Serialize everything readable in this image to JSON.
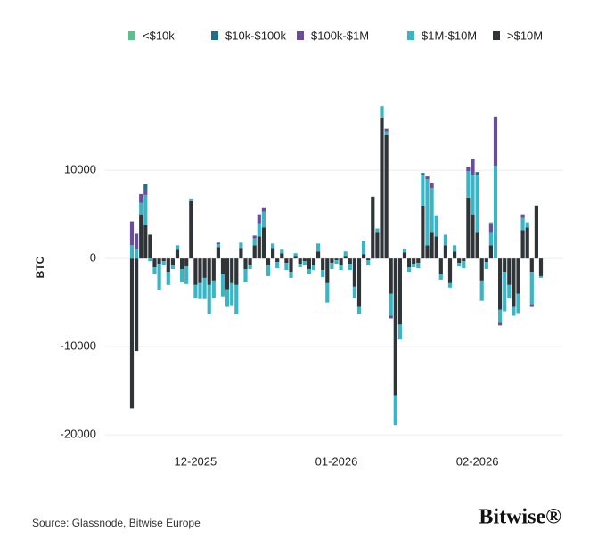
{
  "chart_data": {
    "type": "bar",
    "stacked": true,
    "y_label": "BTC",
    "source": "Source: Glassnode, Bitwise Europe",
    "brand": "Bitwise®",
    "categories": [
      null,
      null,
      null,
      null,
      null,
      null,
      null,
      null,
      null,
      null,
      null,
      null,
      null,
      null,
      "12-2025",
      null,
      null,
      null,
      null,
      null,
      null,
      null,
      null,
      null,
      null,
      null,
      null,
      null,
      null,
      null,
      null,
      null,
      null,
      null,
      null,
      null,
      null,
      null,
      null,
      null,
      null,
      null,
      null,
      null,
      null,
      "01-2026",
      null,
      null,
      null,
      null,
      null,
      null,
      null,
      null,
      null,
      null,
      null,
      null,
      null,
      null,
      null,
      null,
      null,
      null,
      null,
      null,
      null,
      null,
      null,
      null,
      null,
      null,
      null,
      null,
      null,
      null,
      "02-2026",
      null,
      null,
      null,
      null,
      null,
      null,
      null,
      null,
      null,
      null,
      null,
      null,
      null,
      null
    ],
    "ylim": [
      -21000,
      18000
    ],
    "yticks": [
      -20000,
      -10000,
      0,
      10000
    ],
    "grid": true,
    "series": [
      {
        "name": "<$10k",
        "color": "#5cbf8c",
        "values": [
          0,
          0,
          0,
          0,
          0,
          0,
          0,
          0,
          0,
          0,
          0,
          0,
          0,
          0,
          0,
          0,
          0,
          0,
          0,
          0,
          0,
          0,
          0,
          0,
          0,
          0,
          0,
          0,
          0,
          0,
          0,
          0,
          0,
          0,
          0,
          0,
          0,
          0,
          0,
          0,
          0,
          0,
          0,
          0,
          0,
          0,
          0,
          0,
          0,
          0,
          0,
          0,
          0,
          0,
          0,
          100,
          0,
          0,
          0,
          0,
          0,
          0,
          0,
          0,
          0,
          0,
          0,
          0,
          0,
          0,
          0,
          0,
          0,
          0,
          0,
          0,
          0,
          0,
          0,
          100,
          0,
          0,
          0,
          0,
          0,
          0,
          0,
          0,
          0,
          0,
          0
        ]
      },
      {
        "name": "$10k-$100k",
        "color": "#1f6e8c",
        "values": [
          0,
          0,
          0,
          600,
          0,
          0,
          0,
          0,
          0,
          0,
          0,
          0,
          0,
          0,
          0,
          0,
          0,
          0,
          0,
          0,
          0,
          0,
          0,
          0,
          0,
          0,
          0,
          0,
          0,
          0,
          0,
          0,
          0,
          0,
          0,
          0,
          0,
          0,
          0,
          0,
          0,
          0,
          0,
          0,
          0,
          0,
          0,
          0,
          0,
          0,
          0,
          0,
          0,
          0,
          0,
          0,
          0,
          0,
          0,
          0,
          0,
          0,
          0,
          0,
          200,
          0,
          0,
          0,
          0,
          0,
          0,
          0,
          0,
          0,
          0,
          0,
          300,
          0,
          0,
          0,
          0,
          0,
          0,
          0,
          0,
          0,
          0,
          0,
          0,
          0,
          0
        ]
      },
      {
        "name": "$100k-$1M",
        "color": "#6a4c9c",
        "values": [
          2700,
          1800,
          1000,
          600,
          0,
          0,
          0,
          0,
          0,
          0,
          0,
          0,
          0,
          0,
          0,
          0,
          0,
          0,
          0,
          200,
          0,
          0,
          0,
          0,
          0,
          0,
          0,
          300,
          1000,
          500,
          0,
          0,
          0,
          0,
          0,
          0,
          0,
          0,
          0,
          0,
          0,
          0,
          0,
          0,
          0,
          0,
          0,
          0,
          0,
          0,
          0,
          0,
          0,
          0,
          0,
          0,
          300,
          -300,
          0,
          0,
          0,
          0,
          0,
          0,
          0,
          300,
          600,
          0,
          0,
          0,
          0,
          0,
          0,
          0,
          500,
          1800,
          0,
          0,
          0,
          1000,
          5600,
          -300,
          0,
          0,
          0,
          0,
          400,
          0,
          -300,
          0,
          0
        ]
      },
      {
        "name": "$1M-$10M",
        "color": "#3ab5c6",
        "values": [
          1500,
          1000,
          1300,
          3400,
          -300,
          -800,
          -3000,
          -500,
          -1500,
          -400,
          500,
          -1500,
          -2000,
          300,
          -1500,
          -1800,
          -2400,
          -3300,
          -2000,
          300,
          -2500,
          -2000,
          -2500,
          -3300,
          600,
          -1500,
          -400,
          800,
          1500,
          1800,
          -1200,
          500,
          -700,
          400,
          -800,
          -700,
          300,
          -400,
          -500,
          -600,
          -500,
          900,
          -800,
          -2200,
          -700,
          -400,
          -500,
          500,
          -700,
          -1300,
          -800,
          1500,
          -600,
          0,
          400,
          1200,
          400,
          -2500,
          -3400,
          -1700,
          400,
          -500,
          -400,
          -600,
          3500,
          7500,
          5000,
          2400,
          -600,
          1200,
          -500,
          700,
          -400,
          -800,
          3000,
          4500,
          6500,
          -2300,
          -800,
          1500,
          10500,
          -1500,
          -4500,
          -1500,
          -1000,
          -2200,
          1400,
          600,
          -3700,
          0,
          -200
        ]
      },
      {
        "name": ">$10M",
        "color": "#2f3438",
        "values": [
          -17000,
          -10500,
          5000,
          3800,
          2700,
          -1000,
          -600,
          -300,
          -1500,
          -800,
          1000,
          -1200,
          -900,
          6500,
          -3000,
          -2800,
          -2200,
          -3000,
          -2500,
          1300,
          -1800,
          -3500,
          -2800,
          -3000,
          1200,
          -1200,
          -800,
          1500,
          2500,
          3500,
          -800,
          1200,
          -400,
          600,
          -500,
          -1500,
          300,
          -600,
          -300,
          -1200,
          -800,
          800,
          -1300,
          -2800,
          -500,
          -200,
          -800,
          300,
          -600,
          -3200,
          -5500,
          500,
          -200,
          7000,
          3000,
          16000,
          14000,
          -4000,
          -15500,
          -7500,
          700,
          -1000,
          -600,
          -500,
          6000,
          1500,
          3000,
          2500,
          -1800,
          1500,
          -2800,
          800,
          -500,
          -300,
          6900,
          5000,
          3000,
          -2500,
          -400,
          1500,
          0,
          -5800,
          -1500,
          -3000,
          -5500,
          -4000,
          3200,
          3500,
          -1500,
          6000,
          -2000
        ]
      }
    ]
  }
}
